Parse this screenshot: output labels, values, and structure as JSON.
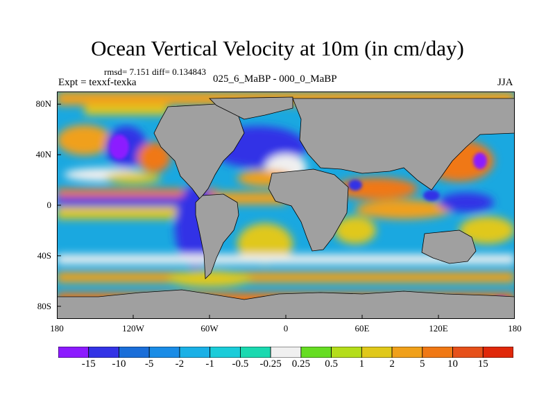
{
  "title": "Ocean Vertical Velocity at 10m (in cm/day)",
  "stats_line": "rmsd= 7.151 diff= 0.134843",
  "experiment": "Expt = texxf-texka",
  "subtitle": "025_6_MaBP - 000_0_MaBP",
  "season": "JJA",
  "map": {
    "projection": "cylindrical-equidistant",
    "lon_range": [
      -180,
      180
    ],
    "lat_range": [
      -90,
      90
    ],
    "land_color": "#a0a0a0",
    "coastline_color": "#000000",
    "lat_labels": [
      {
        "text": "80N",
        "lat": 80
      },
      {
        "text": "40N",
        "lat": 40
      },
      {
        "text": "0",
        "lat": 0
      },
      {
        "text": "40S",
        "lat": -40
      },
      {
        "text": "80S",
        "lat": -80
      }
    ],
    "lon_labels": [
      {
        "text": "180",
        "lon": -180
      },
      {
        "text": "120W",
        "lon": -120
      },
      {
        "text": "60W",
        "lon": -60
      },
      {
        "text": "0",
        "lon": 0
      },
      {
        "text": "60E",
        "lon": 60
      },
      {
        "text": "120E",
        "lon": 120
      },
      {
        "text": "180",
        "lon": 180
      }
    ]
  },
  "colorbar": {
    "colors": [
      "#8c1aff",
      "#3333e6",
      "#1a6ed9",
      "#1a8ce6",
      "#1ab0e6",
      "#1accd9",
      "#1ad9b0",
      "#f0f0f0",
      "#66dd22",
      "#b4dd1a",
      "#e0c81a",
      "#f0a01a",
      "#f07814",
      "#e6501a",
      "#e0280a"
    ],
    "labels": [
      "-15",
      "-10",
      "-5",
      "-2",
      "-1",
      "-0.5",
      "-0.25",
      "0.25",
      "0.5",
      "1",
      "2",
      "5",
      "10",
      "15"
    ]
  }
}
